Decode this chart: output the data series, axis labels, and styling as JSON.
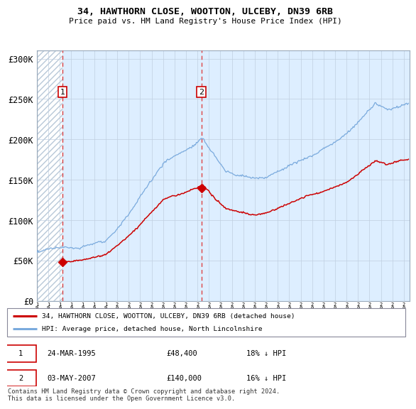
{
  "title": "34, HAWTHORN CLOSE, WOOTTON, ULCEBY, DN39 6RB",
  "subtitle": "Price paid vs. HM Land Registry's House Price Index (HPI)",
  "ylim": [
    0,
    310000
  ],
  "xlim_start": 1993.0,
  "xlim_end": 2025.5,
  "yticks": [
    0,
    50000,
    100000,
    150000,
    200000,
    250000,
    300000
  ],
  "ytick_labels": [
    "£0",
    "£50K",
    "£100K",
    "£150K",
    "£200K",
    "£250K",
    "£300K"
  ],
  "sale1_date": 1995.23,
  "sale1_price": 48400,
  "sale2_date": 2007.34,
  "sale2_price": 140000,
  "legend_line1": "34, HAWTHORN CLOSE, WOOTTON, ULCEBY, DN39 6RB (detached house)",
  "legend_line2": "HPI: Average price, detached house, North Lincolnshire",
  "footnote": "Contains HM Land Registry data © Crown copyright and database right 2024.\nThis data is licensed under the Open Government Licence v3.0.",
  "hpi_color": "#7aaadd",
  "sale_color": "#cc0000",
  "dashed_color": "#dd4444",
  "hatch_bg": "white",
  "solid_bg": "#ddeeff"
}
